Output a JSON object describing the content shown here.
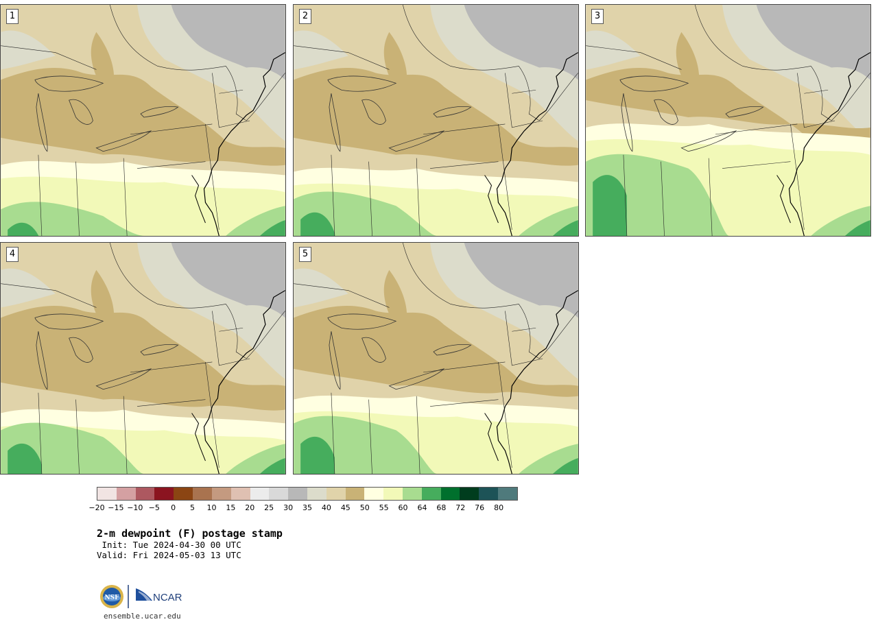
{
  "panels": [
    {
      "label": "1",
      "variant": 1
    },
    {
      "label": "2",
      "variant": 2
    },
    {
      "label": "3",
      "variant": 3
    },
    {
      "label": "4",
      "variant": 4
    },
    {
      "label": "5",
      "variant": 5
    }
  ],
  "colorbar": {
    "colors": [
      "#f1e4e3",
      "#d4a0a2",
      "#ad5860",
      "#8b1420",
      "#8b4513",
      "#a9734f",
      "#c49a80",
      "#dfc0b2",
      "#ececec",
      "#d9d9d9",
      "#b8b8b8",
      "#dcdccb",
      "#e0d3aa",
      "#c9b276",
      "#ffffe1",
      "#f2f9b8",
      "#a8dc90",
      "#46ad5d",
      "#00702d",
      "#003d1e",
      "#1d5357",
      "#4f7a7c"
    ],
    "ticks": [
      "−20",
      "−15",
      "−10",
      "−5",
      "0",
      "5",
      "10",
      "15",
      "20",
      "25",
      "30",
      "35",
      "40",
      "45",
      "50",
      "55",
      "60",
      "64",
      "68",
      "72",
      "76",
      "80"
    ]
  },
  "title": "2-m dewpoint (F) postage stamp",
  "init": " Init: Tue 2024-04-30 00 UTC",
  "valid": "Valid: Fri 2024-05-03 13 UTC",
  "logos": {
    "nsf": "NSF",
    "ncar": "NCAR"
  },
  "site": "ensemble.ucar.edu"
}
